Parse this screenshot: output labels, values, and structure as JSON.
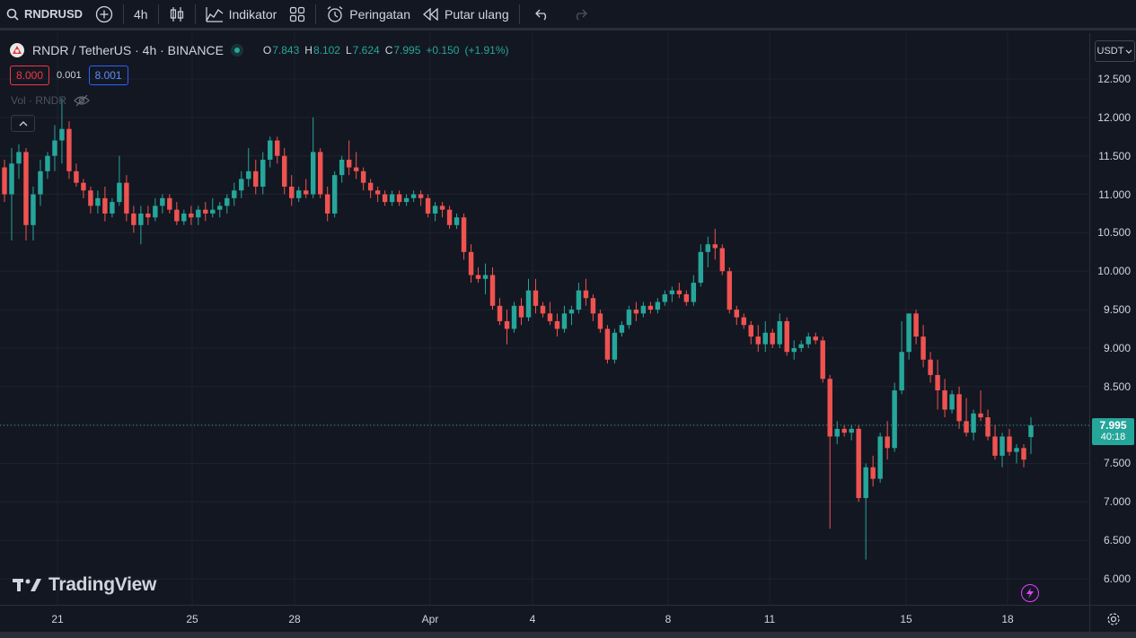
{
  "toolbar": {
    "symbol": "RNDRUSD",
    "interval": "4h",
    "indicators_label": "Indikator",
    "alerts_label": "Peringatan",
    "replay_label": "Putar ulang"
  },
  "legend": {
    "title": "RNDR / TetherUS · 4h · BINANCE",
    "o_label": "O",
    "o": "7.843",
    "h_label": "H",
    "h": "8.102",
    "l_label": "L",
    "l": "7.624",
    "c_label": "C",
    "c": "7.995",
    "change": "+0.150",
    "change_pct": "(+1.91%)",
    "bid": "8.000",
    "spread": "0.001",
    "ask": "8.001",
    "volume_label": "Vol · RNDR"
  },
  "price_scale": {
    "currency": "USDT",
    "labels": [
      "12.500",
      "12.000",
      "11.500",
      "11.000",
      "10.500",
      "10.000",
      "9.500",
      "9.000",
      "8.500",
      "7.500",
      "7.000",
      "6.500",
      "6.000"
    ],
    "current_price": "7.995",
    "countdown": "40:18"
  },
  "time_scale": {
    "labels": [
      "21",
      "25",
      "28",
      "Apr",
      "4",
      "8",
      "11",
      "15",
      "18"
    ]
  },
  "watermark": "TradingView",
  "colors": {
    "up": "#26a69a",
    "down": "#ef5350",
    "background": "#131722",
    "grid": "#1e222d"
  },
  "chart_data": {
    "type": "candlestick",
    "symbol": "RNDR / TetherUS",
    "interval": "4h",
    "exchange": "BINANCE",
    "y_axis_range": [
      5.9,
      12.8
    ],
    "x_axis_labels": [
      "21",
      "25",
      "28",
      "Apr",
      "4",
      "8",
      "11",
      "15",
      "18"
    ],
    "current_price": 7.995,
    "ohlc_last": {
      "o": 7.843,
      "h": 8.102,
      "l": 7.624,
      "c": 7.995
    },
    "candles": [
      [
        11.35,
        11.45,
        10.9,
        11.0
      ],
      [
        11.0,
        11.6,
        10.4,
        11.4
      ],
      [
        11.4,
        11.65,
        11.2,
        11.55
      ],
      [
        11.55,
        11.6,
        10.4,
        10.6
      ],
      [
        10.6,
        11.1,
        10.4,
        11.0
      ],
      [
        11.0,
        11.45,
        10.85,
        11.3
      ],
      [
        11.3,
        11.55,
        11.2,
        11.5
      ],
      [
        11.5,
        11.9,
        11.3,
        11.7
      ],
      [
        11.7,
        12.25,
        11.4,
        11.85
      ],
      [
        11.85,
        11.95,
        11.2,
        11.3
      ],
      [
        11.3,
        11.4,
        11.1,
        11.15
      ],
      [
        11.15,
        11.2,
        10.95,
        11.05
      ],
      [
        11.05,
        11.1,
        10.75,
        10.85
      ],
      [
        10.85,
        11.05,
        10.75,
        10.95
      ],
      [
        10.95,
        11.1,
        10.65,
        10.75
      ],
      [
        10.75,
        10.95,
        10.7,
        10.9
      ],
      [
        10.9,
        11.5,
        10.85,
        11.15
      ],
      [
        11.15,
        11.25,
        10.65,
        10.75
      ],
      [
        10.75,
        10.85,
        10.5,
        10.6
      ],
      [
        10.6,
        10.85,
        10.35,
        10.75
      ],
      [
        10.75,
        10.85,
        10.6,
        10.7
      ],
      [
        10.7,
        10.95,
        10.65,
        10.85
      ],
      [
        10.85,
        11.0,
        10.75,
        10.95
      ],
      [
        10.95,
        11.0,
        10.75,
        10.8
      ],
      [
        10.8,
        10.9,
        10.6,
        10.65
      ],
      [
        10.65,
        10.8,
        10.6,
        10.75
      ],
      [
        10.75,
        10.85,
        10.6,
        10.7
      ],
      [
        10.7,
        10.85,
        10.6,
        10.8
      ],
      [
        10.8,
        10.9,
        10.65,
        10.75
      ],
      [
        10.75,
        10.95,
        10.7,
        10.8
      ],
      [
        10.8,
        10.9,
        10.7,
        10.85
      ],
      [
        10.85,
        11.0,
        10.75,
        10.95
      ],
      [
        10.95,
        11.15,
        10.85,
        11.05
      ],
      [
        11.05,
        11.3,
        10.95,
        11.2
      ],
      [
        11.2,
        11.6,
        11.1,
        11.3
      ],
      [
        11.3,
        11.45,
        11.0,
        11.1
      ],
      [
        11.1,
        11.55,
        11.0,
        11.45
      ],
      [
        11.45,
        11.75,
        11.35,
        11.7
      ],
      [
        11.7,
        11.75,
        11.4,
        11.5
      ],
      [
        11.5,
        11.6,
        11.0,
        11.1
      ],
      [
        11.1,
        11.25,
        10.85,
        10.95
      ],
      [
        10.95,
        11.1,
        10.9,
        11.05
      ],
      [
        11.05,
        11.2,
        10.95,
        11.0
      ],
      [
        11.0,
        12.0,
        10.95,
        11.55
      ],
      [
        11.55,
        11.6,
        10.95,
        11.0
      ],
      [
        11.0,
        11.1,
        10.65,
        10.75
      ],
      [
        10.75,
        11.3,
        10.7,
        11.25
      ],
      [
        11.25,
        11.5,
        11.15,
        11.45
      ],
      [
        11.45,
        11.7,
        11.25,
        11.35
      ],
      [
        11.35,
        11.55,
        11.2,
        11.3
      ],
      [
        11.3,
        11.35,
        11.05,
        11.15
      ],
      [
        11.15,
        11.2,
        10.95,
        11.05
      ],
      [
        11.05,
        11.1,
        10.9,
        11.0
      ],
      [
        11.0,
        11.05,
        10.85,
        10.9
      ],
      [
        10.9,
        11.05,
        10.85,
        11.0
      ],
      [
        11.0,
        11.05,
        10.85,
        10.9
      ],
      [
        10.9,
        11.0,
        10.85,
        10.95
      ],
      [
        10.95,
        11.05,
        10.9,
        11.0
      ],
      [
        11.0,
        11.05,
        10.85,
        10.95
      ],
      [
        10.95,
        11.0,
        10.7,
        10.75
      ],
      [
        10.75,
        10.9,
        10.65,
        10.85
      ],
      [
        10.85,
        10.9,
        10.7,
        10.8
      ],
      [
        10.8,
        10.85,
        10.55,
        10.6
      ],
      [
        10.6,
        10.75,
        10.55,
        10.7
      ],
      [
        10.7,
        10.75,
        10.15,
        10.25
      ],
      [
        10.25,
        10.35,
        9.85,
        9.95
      ],
      [
        9.95,
        10.05,
        9.85,
        9.9
      ],
      [
        9.9,
        10.1,
        9.7,
        9.95
      ],
      [
        9.95,
        10.05,
        9.5,
        9.55
      ],
      [
        9.55,
        9.65,
        9.3,
        9.35
      ],
      [
        9.35,
        9.5,
        9.05,
        9.25
      ],
      [
        9.25,
        9.6,
        9.2,
        9.55
      ],
      [
        9.55,
        9.65,
        9.3,
        9.4
      ],
      [
        9.4,
        9.9,
        9.35,
        9.75
      ],
      [
        9.75,
        9.9,
        9.45,
        9.55
      ],
      [
        9.55,
        9.6,
        9.4,
        9.45
      ],
      [
        9.45,
        9.6,
        9.3,
        9.35
      ],
      [
        9.35,
        9.45,
        9.15,
        9.25
      ],
      [
        9.25,
        9.55,
        9.2,
        9.45
      ],
      [
        9.45,
        9.55,
        9.3,
        9.5
      ],
      [
        9.5,
        9.85,
        9.45,
        9.75
      ],
      [
        9.75,
        9.9,
        9.55,
        9.65
      ],
      [
        9.65,
        9.7,
        9.35,
        9.45
      ],
      [
        9.45,
        9.5,
        9.2,
        9.25
      ],
      [
        9.25,
        9.3,
        8.8,
        8.85
      ],
      [
        8.85,
        9.25,
        8.8,
        9.2
      ],
      [
        9.2,
        9.35,
        9.15,
        9.3
      ],
      [
        9.3,
        9.55,
        9.25,
        9.5
      ],
      [
        9.5,
        9.6,
        9.35,
        9.45
      ],
      [
        9.45,
        9.6,
        9.4,
        9.55
      ],
      [
        9.55,
        9.6,
        9.45,
        9.5
      ],
      [
        9.5,
        9.65,
        9.45,
        9.6
      ],
      [
        9.6,
        9.75,
        9.55,
        9.7
      ],
      [
        9.7,
        9.8,
        9.6,
        9.75
      ],
      [
        9.75,
        9.85,
        9.65,
        9.7
      ],
      [
        9.7,
        9.75,
        9.55,
        9.6
      ],
      [
        9.6,
        9.95,
        9.55,
        9.85
      ],
      [
        9.85,
        10.35,
        9.8,
        10.25
      ],
      [
        10.25,
        10.45,
        10.05,
        10.35
      ],
      [
        10.35,
        10.55,
        10.15,
        10.3
      ],
      [
        10.3,
        10.35,
        9.95,
        10.0
      ],
      [
        10.0,
        10.05,
        9.45,
        9.5
      ],
      [
        9.5,
        9.55,
        9.3,
        9.4
      ],
      [
        9.4,
        9.45,
        9.25,
        9.3
      ],
      [
        9.3,
        9.35,
        9.05,
        9.15
      ],
      [
        9.15,
        9.3,
        8.95,
        9.05
      ],
      [
        9.05,
        9.35,
        8.95,
        9.2
      ],
      [
        9.2,
        9.25,
        9.0,
        9.05
      ],
      [
        9.05,
        9.45,
        9.0,
        9.35
      ],
      [
        9.35,
        9.4,
        8.9,
        8.95
      ],
      [
        8.95,
        9.1,
        8.85,
        9.0
      ],
      [
        9.0,
        9.1,
        8.95,
        9.05
      ],
      [
        9.05,
        9.2,
        9.0,
        9.15
      ],
      [
        9.15,
        9.2,
        9.05,
        9.1
      ],
      [
        9.1,
        9.15,
        8.55,
        8.6
      ],
      [
        8.6,
        8.65,
        6.65,
        7.85
      ],
      [
        7.85,
        8.05,
        7.75,
        7.95
      ],
      [
        7.95,
        8.0,
        7.85,
        7.9
      ],
      [
        7.9,
        8.0,
        7.8,
        7.95
      ],
      [
        7.95,
        8.0,
        7.0,
        7.05
      ],
      [
        7.05,
        7.5,
        6.25,
        7.45
      ],
      [
        7.45,
        7.6,
        7.2,
        7.3
      ],
      [
        7.3,
        7.9,
        7.25,
        7.85
      ],
      [
        7.85,
        8.05,
        7.55,
        7.7
      ],
      [
        7.7,
        8.55,
        7.65,
        8.45
      ],
      [
        8.45,
        9.35,
        8.4,
        8.95
      ],
      [
        8.95,
        9.45,
        8.85,
        9.45
      ],
      [
        9.45,
        9.5,
        9.05,
        9.15
      ],
      [
        9.15,
        9.3,
        8.75,
        8.85
      ],
      [
        8.85,
        8.95,
        8.55,
        8.65
      ],
      [
        8.65,
        8.85,
        8.2,
        8.45
      ],
      [
        8.45,
        8.6,
        8.1,
        8.2
      ],
      [
        8.2,
        8.45,
        8.15,
        8.4
      ],
      [
        8.4,
        8.5,
        7.95,
        8.05
      ],
      [
        8.05,
        8.35,
        7.85,
        7.9
      ],
      [
        7.9,
        8.2,
        7.8,
        8.15
      ],
      [
        8.15,
        8.45,
        8.05,
        8.1
      ],
      [
        8.1,
        8.2,
        7.8,
        7.85
      ],
      [
        7.85,
        8.0,
        7.55,
        7.6
      ],
      [
        7.6,
        7.9,
        7.45,
        7.85
      ],
      [
        7.85,
        7.95,
        7.6,
        7.65
      ],
      [
        7.65,
        7.75,
        7.5,
        7.7
      ],
      [
        7.7,
        7.75,
        7.45,
        7.55
      ],
      [
        7.843,
        8.102,
        7.624,
        7.995
      ]
    ]
  }
}
